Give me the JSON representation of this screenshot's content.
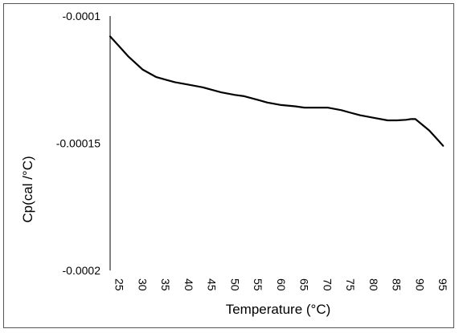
{
  "chart_data": {
    "type": "line",
    "title": "",
    "xlabel": "Temperature (°C)",
    "ylabel": "Cp(cal /°C)",
    "xlim": [
      23,
      96
    ],
    "ylim": [
      -0.0002,
      -0.0001
    ],
    "x_ticks": [
      25,
      30,
      35,
      40,
      45,
      50,
      55,
      60,
      65,
      70,
      75,
      80,
      85,
      90,
      95
    ],
    "x_tick_labels": [
      "25",
      "30",
      "35",
      "40",
      "45",
      "50",
      "55",
      "60",
      "65",
      "70",
      "75",
      "80",
      "85",
      "90",
      "95"
    ],
    "y_ticks": [
      -0.0001,
      -0.00015,
      -0.0002
    ],
    "y_tick_labels": [
      "-0.0001",
      "-0.00015",
      "-0.0002"
    ],
    "grid": false,
    "legend": "none",
    "line_color": "#000000",
    "series": [
      {
        "x": [
          23,
          25,
          27,
          30,
          33,
          35,
          37,
          40,
          43,
          45,
          47,
          50,
          52,
          55,
          57,
          60,
          63,
          65,
          67,
          70,
          73,
          75,
          77,
          80,
          83,
          85,
          87,
          88,
          89,
          90,
          92,
          94,
          95
        ],
        "y": [
          -0.000108,
          -0.000112,
          -0.000116,
          -0.000121,
          -0.000124,
          -0.000125,
          -0.000126,
          -0.000127,
          -0.000128,
          -0.000129,
          -0.00013,
          -0.000131,
          -0.0001315,
          -0.000133,
          -0.000134,
          -0.000135,
          -0.0001355,
          -0.000136,
          -0.000136,
          -0.000136,
          -0.000137,
          -0.000138,
          -0.000139,
          -0.00014,
          -0.000141,
          -0.000141,
          -0.0001408,
          -0.0001405,
          -0.0001405,
          -0.000142,
          -0.000145,
          -0.000149,
          -0.000151
        ]
      }
    ]
  }
}
